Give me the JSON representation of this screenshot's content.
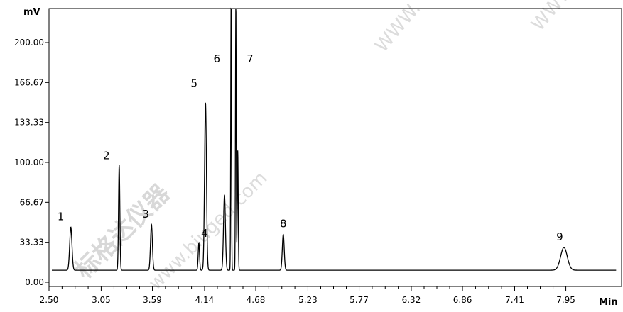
{
  "watermarks": [
    "标格达仪器",
    "www.biuged.com",
    "WWW.",
    "WWW.b"
  ],
  "chart_data": {
    "type": "line",
    "y_unit": "mV",
    "x_unit": "Min",
    "xlim": [
      2.5,
      8.5
    ],
    "ylim": [
      -5,
      230
    ],
    "x_tick_values": [
      2.5,
      3.05,
      3.59,
      4.14,
      4.68,
      5.23,
      5.77,
      6.32,
      6.86,
      7.41,
      7.95
    ],
    "x_tick_labels": [
      "2.50",
      "3.05",
      "3.59",
      "4.14",
      "4.68",
      "5.23",
      "5.77",
      "6.32",
      "6.86",
      "7.41",
      "7.95"
    ],
    "y_tick_values": [
      0,
      33.33,
      66.67,
      100,
      133.33,
      166.67,
      200
    ],
    "y_tick_labels": [
      "0.00",
      "33.33",
      "66.67",
      "100.00",
      "133.33",
      "166.67",
      "200.00"
    ],
    "baseline": 10,
    "grid": false,
    "legend": "none",
    "line_color": "#000000",
    "peaks": [
      {
        "label": "1",
        "x": 2.73,
        "height": 36,
        "width": 0.012
      },
      {
        "label": "2",
        "x": 3.24,
        "height": 88,
        "width": 0.007
      },
      {
        "label": "3",
        "x": 3.58,
        "height": 38,
        "width": 0.01
      },
      {
        "label": "4",
        "x": 4.08,
        "height": 23,
        "width": 0.007
      },
      {
        "label": "5",
        "x": 4.15,
        "height": 140,
        "width": 0.01
      },
      {
        "label": "6",
        "x": 4.42,
        "height": 225,
        "width": 0.004
      },
      {
        "label": "7",
        "x": 4.47,
        "height": 225,
        "width": 0.004
      },
      {
        "label": "8",
        "x": 4.97,
        "height": 30,
        "width": 0.01
      },
      {
        "label": "9",
        "x": 7.93,
        "height": 19,
        "width": 0.035
      }
    ],
    "shoulder_peaks": [
      {
        "x": 4.35,
        "height": 63,
        "width": 0.01
      },
      {
        "x": 4.49,
        "height": 100,
        "width": 0.005
      }
    ]
  }
}
